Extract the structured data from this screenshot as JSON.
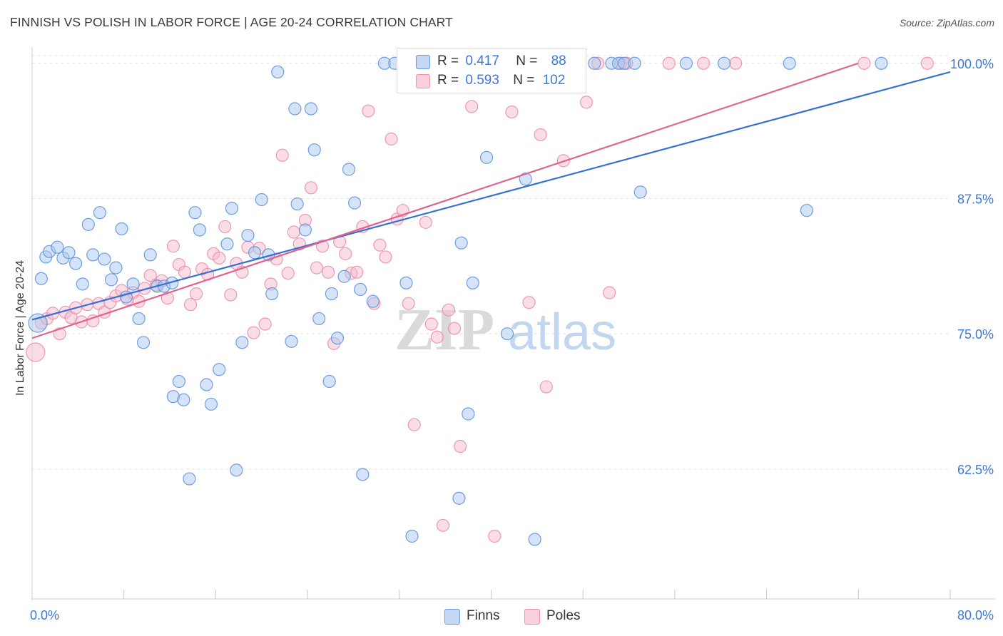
{
  "title": "FINNISH VS POLISH IN LABOR FORCE | AGE 20-24 CORRELATION CHART",
  "source": "Source: ZipAtlas.com",
  "watermark": {
    "bold": "ZIP",
    "light": "atlas"
  },
  "colors": {
    "finns_fill": "#a9c8f0",
    "finns_stroke": "#5b8fd9",
    "finns_line": "#3572d0",
    "poles_fill": "#f7bccd",
    "poles_stroke": "#e98aa8",
    "poles_line": "#e0638f",
    "axis_text": "#3d78d8",
    "grid": "#e3e3e3"
  },
  "legend_top": {
    "finns": {
      "r_label": "R =",
      "r_value": "0.417",
      "n_label": "N =",
      "n_value": "88"
    },
    "poles": {
      "r_label": "R =",
      "r_value": "0.593",
      "n_label": "N =",
      "n_value": "102"
    }
  },
  "legend_bottom": {
    "finns": "Finns",
    "poles": "Poles"
  },
  "x_ticks": {
    "left": "0.0%",
    "right": "80.0%"
  },
  "chart_data": {
    "type": "scatter",
    "title": "FINNISH VS POLISH IN LABOR FORCE | AGE 20-24 CORRELATION CHART",
    "xlabel": "",
    "ylabel": "In Labor Force | Age 20-24",
    "xlim": [
      0,
      80
    ],
    "ylim": [
      50.5,
      101.5
    ],
    "y_ticks": [
      62.5,
      75.0,
      87.5,
      100.0
    ],
    "y_tick_labels": [
      "62.5%",
      "75.0%",
      "87.5%",
      "100.0%"
    ],
    "grid": true,
    "legend": "top-center",
    "series": [
      {
        "name": "Finns",
        "r": 0.417,
        "n": 88,
        "trend": {
          "x": [
            0,
            80
          ],
          "y": [
            76.3,
            99.2
          ]
        },
        "points": [
          {
            "x": 0.5,
            "y": 76.0,
            "big": true
          },
          {
            "x": 0.8,
            "y": 80.1
          },
          {
            "x": 1.2,
            "y": 82.1
          },
          {
            "x": 1.5,
            "y": 82.6
          },
          {
            "x": 2.2,
            "y": 83.0
          },
          {
            "x": 2.7,
            "y": 82.0
          },
          {
            "x": 3.2,
            "y": 82.5
          },
          {
            "x": 3.8,
            "y": 81.5
          },
          {
            "x": 4.4,
            "y": 79.6
          },
          {
            "x": 4.9,
            "y": 85.1
          },
          {
            "x": 5.3,
            "y": 82.3
          },
          {
            "x": 5.9,
            "y": 86.2
          },
          {
            "x": 6.3,
            "y": 81.9
          },
          {
            "x": 6.9,
            "y": 80.0
          },
          {
            "x": 7.3,
            "y": 81.1
          },
          {
            "x": 7.8,
            "y": 84.7
          },
          {
            "x": 8.2,
            "y": 78.4
          },
          {
            "x": 8.8,
            "y": 79.6
          },
          {
            "x": 9.3,
            "y": 76.4
          },
          {
            "x": 9.7,
            "y": 74.2
          },
          {
            "x": 10.3,
            "y": 82.3
          },
          {
            "x": 10.9,
            "y": 79.4
          },
          {
            "x": 11.5,
            "y": 79.4
          },
          {
            "x": 12.2,
            "y": 79.7
          },
          {
            "x": 12.3,
            "y": 69.2
          },
          {
            "x": 12.8,
            "y": 70.6
          },
          {
            "x": 13.2,
            "y": 68.9
          },
          {
            "x": 13.7,
            "y": 61.6
          },
          {
            "x": 14.2,
            "y": 86.2
          },
          {
            "x": 14.6,
            "y": 84.6
          },
          {
            "x": 15.2,
            "y": 70.3
          },
          {
            "x": 15.6,
            "y": 68.5
          },
          {
            "x": 16.3,
            "y": 71.7
          },
          {
            "x": 17.0,
            "y": 83.3
          },
          {
            "x": 17.4,
            "y": 86.6
          },
          {
            "x": 17.8,
            "y": 62.4
          },
          {
            "x": 18.3,
            "y": 74.2
          },
          {
            "x": 18.8,
            "y": 84.1
          },
          {
            "x": 19.4,
            "y": 82.5
          },
          {
            "x": 20.0,
            "y": 87.4
          },
          {
            "x": 20.6,
            "y": 82.3
          },
          {
            "x": 20.9,
            "y": 78.7
          },
          {
            "x": 21.4,
            "y": 99.2
          },
          {
            "x": 22.6,
            "y": 74.3
          },
          {
            "x": 22.9,
            "y": 95.8
          },
          {
            "x": 23.1,
            "y": 87.0
          },
          {
            "x": 23.8,
            "y": 84.6
          },
          {
            "x": 24.3,
            "y": 95.8
          },
          {
            "x": 24.6,
            "y": 92.0
          },
          {
            "x": 25.0,
            "y": 76.4
          },
          {
            "x": 25.9,
            "y": 70.6
          },
          {
            "x": 26.1,
            "y": 78.7
          },
          {
            "x": 26.6,
            "y": 74.6
          },
          {
            "x": 27.2,
            "y": 80.3
          },
          {
            "x": 27.6,
            "y": 90.2
          },
          {
            "x": 28.1,
            "y": 87.1
          },
          {
            "x": 28.6,
            "y": 79.1
          },
          {
            "x": 28.8,
            "y": 62.0
          },
          {
            "x": 29.7,
            "y": 78.0
          },
          {
            "x": 30.7,
            "y": 100.0
          },
          {
            "x": 31.6,
            "y": 100.0
          },
          {
            "x": 32.6,
            "y": 79.7
          },
          {
            "x": 33.1,
            "y": 56.3
          },
          {
            "x": 34.4,
            "y": 100.0
          },
          {
            "x": 35.2,
            "y": 100.0
          },
          {
            "x": 37.2,
            "y": 59.8
          },
          {
            "x": 37.4,
            "y": 83.4
          },
          {
            "x": 38.0,
            "y": 67.6
          },
          {
            "x": 38.4,
            "y": 79.7
          },
          {
            "x": 39.6,
            "y": 91.3
          },
          {
            "x": 40.3,
            "y": 100.0
          },
          {
            "x": 41.0,
            "y": 100.0
          },
          {
            "x": 41.4,
            "y": 75.0
          },
          {
            "x": 42.1,
            "y": 100.0
          },
          {
            "x": 43.0,
            "y": 89.3
          },
          {
            "x": 43.8,
            "y": 56.0
          },
          {
            "x": 45.2,
            "y": 100.0
          },
          {
            "x": 49.0,
            "y": 100.0
          },
          {
            "x": 50.5,
            "y": 100.0
          },
          {
            "x": 51.1,
            "y": 100.0
          },
          {
            "x": 51.6,
            "y": 100.0
          },
          {
            "x": 52.5,
            "y": 100.0
          },
          {
            "x": 53.0,
            "y": 88.1
          },
          {
            "x": 57.0,
            "y": 100.0
          },
          {
            "x": 60.3,
            "y": 100.0
          },
          {
            "x": 66.0,
            "y": 100.0
          },
          {
            "x": 67.5,
            "y": 86.4
          },
          {
            "x": 74.0,
            "y": 100.0
          }
        ]
      },
      {
        "name": "Poles",
        "r": 0.593,
        "n": 102,
        "trend": {
          "x": [
            0,
            72
          ],
          "y": [
            74.6,
            100.0
          ]
        },
        "points": [
          {
            "x": 0.3,
            "y": 73.3,
            "big": true
          },
          {
            "x": 0.8,
            "y": 76.0
          },
          {
            "x": 1.3,
            "y": 76.4
          },
          {
            "x": 1.8,
            "y": 76.9
          },
          {
            "x": 2.4,
            "y": 75.0
          },
          {
            "x": 2.9,
            "y": 77.0
          },
          {
            "x": 3.4,
            "y": 76.5
          },
          {
            "x": 3.8,
            "y": 77.4
          },
          {
            "x": 4.3,
            "y": 76.1
          },
          {
            "x": 4.8,
            "y": 77.7
          },
          {
            "x": 5.3,
            "y": 76.2
          },
          {
            "x": 5.8,
            "y": 77.8
          },
          {
            "x": 6.3,
            "y": 77.0
          },
          {
            "x": 6.8,
            "y": 77.9
          },
          {
            "x": 7.3,
            "y": 78.5
          },
          {
            "x": 7.8,
            "y": 79.0
          },
          {
            "x": 8.3,
            "y": 78.2
          },
          {
            "x": 8.8,
            "y": 78.8
          },
          {
            "x": 9.3,
            "y": 78.0
          },
          {
            "x": 9.8,
            "y": 79.2
          },
          {
            "x": 10.3,
            "y": 80.4
          },
          {
            "x": 10.8,
            "y": 79.5
          },
          {
            "x": 11.3,
            "y": 79.9
          },
          {
            "x": 11.8,
            "y": 78.3
          },
          {
            "x": 12.3,
            "y": 83.1
          },
          {
            "x": 12.8,
            "y": 81.4
          },
          {
            "x": 13.3,
            "y": 80.7
          },
          {
            "x": 13.8,
            "y": 77.7
          },
          {
            "x": 14.3,
            "y": 78.7
          },
          {
            "x": 14.8,
            "y": 81.0
          },
          {
            "x": 15.3,
            "y": 80.5
          },
          {
            "x": 15.8,
            "y": 82.4
          },
          {
            "x": 16.3,
            "y": 82.0
          },
          {
            "x": 16.8,
            "y": 84.9
          },
          {
            "x": 17.3,
            "y": 78.6
          },
          {
            "x": 17.8,
            "y": 81.5
          },
          {
            "x": 18.3,
            "y": 80.7
          },
          {
            "x": 18.8,
            "y": 83.0
          },
          {
            "x": 19.3,
            "y": 75.1
          },
          {
            "x": 19.8,
            "y": 82.9
          },
          {
            "x": 20.3,
            "y": 75.9
          },
          {
            "x": 20.8,
            "y": 79.6
          },
          {
            "x": 21.3,
            "y": 81.9
          },
          {
            "x": 21.8,
            "y": 91.5
          },
          {
            "x": 22.3,
            "y": 80.6
          },
          {
            "x": 22.8,
            "y": 84.4
          },
          {
            "x": 23.3,
            "y": 83.3
          },
          {
            "x": 23.8,
            "y": 85.5
          },
          {
            "x": 24.3,
            "y": 88.5
          },
          {
            "x": 24.8,
            "y": 81.1
          },
          {
            "x": 25.3,
            "y": 83.1
          },
          {
            "x": 25.8,
            "y": 80.7
          },
          {
            "x": 26.3,
            "y": 74.1
          },
          {
            "x": 26.8,
            "y": 83.5
          },
          {
            "x": 27.3,
            "y": 82.4
          },
          {
            "x": 27.8,
            "y": 80.6
          },
          {
            "x": 28.3,
            "y": 80.7
          },
          {
            "x": 28.8,
            "y": 84.9
          },
          {
            "x": 29.3,
            "y": 95.6
          },
          {
            "x": 29.8,
            "y": 77.8
          },
          {
            "x": 30.3,
            "y": 83.2
          },
          {
            "x": 30.8,
            "y": 82.1
          },
          {
            "x": 31.3,
            "y": 93.0
          },
          {
            "x": 31.8,
            "y": 85.6
          },
          {
            "x": 32.3,
            "y": 86.4
          },
          {
            "x": 32.8,
            "y": 77.8
          },
          {
            "x": 33.3,
            "y": 66.6
          },
          {
            "x": 33.8,
            "y": 99.8
          },
          {
            "x": 34.3,
            "y": 85.3
          },
          {
            "x": 34.8,
            "y": 75.9
          },
          {
            "x": 35.3,
            "y": 74.7
          },
          {
            "x": 35.8,
            "y": 57.3
          },
          {
            "x": 36.3,
            "y": 77.2
          },
          {
            "x": 36.8,
            "y": 75.5
          },
          {
            "x": 37.3,
            "y": 64.6
          },
          {
            "x": 37.8,
            "y": 99.8
          },
          {
            "x": 38.3,
            "y": 96.0
          },
          {
            "x": 38.8,
            "y": 99.8
          },
          {
            "x": 39.3,
            "y": 99.8
          },
          {
            "x": 39.8,
            "y": 99.8
          },
          {
            "x": 40.3,
            "y": 56.3
          },
          {
            "x": 40.8,
            "y": 100.0
          },
          {
            "x": 41.3,
            "y": 100.0
          },
          {
            "x": 41.8,
            "y": 95.5
          },
          {
            "x": 42.3,
            "y": 100.0
          },
          {
            "x": 42.8,
            "y": 100.0
          },
          {
            "x": 43.3,
            "y": 77.9
          },
          {
            "x": 44.3,
            "y": 93.4
          },
          {
            "x": 44.8,
            "y": 70.1
          },
          {
            "x": 45.3,
            "y": 100.0
          },
          {
            "x": 46.3,
            "y": 91.0
          },
          {
            "x": 47.3,
            "y": 100.0
          },
          {
            "x": 48.3,
            "y": 96.4
          },
          {
            "x": 49.3,
            "y": 100.0
          },
          {
            "x": 50.3,
            "y": 78.8
          },
          {
            "x": 51.3,
            "y": 100.0
          },
          {
            "x": 51.8,
            "y": 100.0
          },
          {
            "x": 55.5,
            "y": 100.0
          },
          {
            "x": 58.5,
            "y": 100.0
          },
          {
            "x": 61.3,
            "y": 100.0
          },
          {
            "x": 72.5,
            "y": 100.0
          },
          {
            "x": 78.0,
            "y": 100.0
          }
        ]
      }
    ]
  }
}
